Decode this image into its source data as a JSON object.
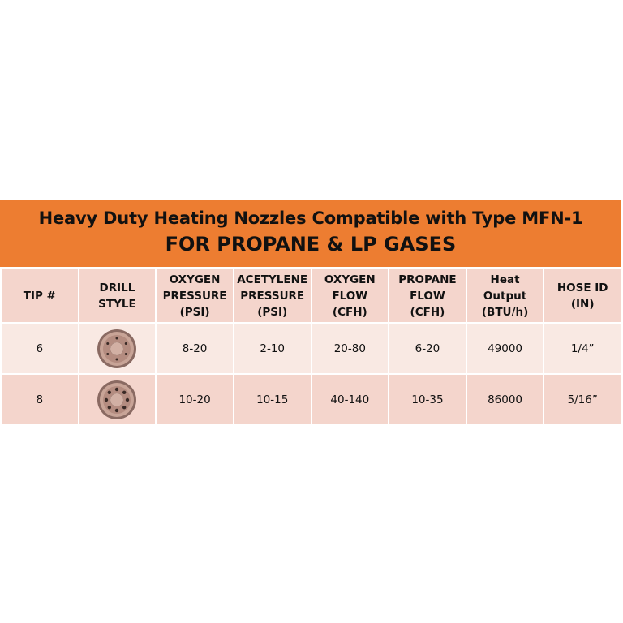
{
  "title": {
    "line1": "Heavy Duty Heating Nozzles Compatible with Type MFN-1",
    "line2": "FOR PROPANE & LP GASES"
  },
  "colors": {
    "banner": "#ED7D31",
    "header_row": "#F4D5CC",
    "row_light": "#F9E9E3",
    "row_dark": "#F4D5CC"
  },
  "table": {
    "headers": [
      [
        "TIP #"
      ],
      [
        "DRILL",
        "STYLE"
      ],
      [
        "OXYGEN",
        "PRESSURE",
        "(PSI)"
      ],
      [
        "ACETYLENE",
        "PRESSURE",
        "(PSI)"
      ],
      [
        "OXYGEN",
        "FLOW",
        "(CFH)"
      ],
      [
        "PROPANE",
        "FLOW",
        "(CFH)"
      ],
      [
        "Heat",
        "Output",
        "(BTU/h)"
      ],
      [
        "HOSE ID",
        "(IN)"
      ]
    ],
    "rows": [
      {
        "tip": "6",
        "drill_icon": "nozzle-tip-6-hole",
        "oxygen_pressure": "8-20",
        "acetylene_pressure": "2-10",
        "oxygen_flow": "20-80",
        "propane_flow": "6-20",
        "heat_output": "49000",
        "hose_id": "1/4”"
      },
      {
        "tip": "8",
        "drill_icon": "nozzle-tip-8-hole",
        "oxygen_pressure": "10-20",
        "acetylene_pressure": "10-15",
        "oxygen_flow": "40-140",
        "propane_flow": "10-35",
        "heat_output": "86000",
        "hose_id": "5/16”"
      }
    ]
  }
}
